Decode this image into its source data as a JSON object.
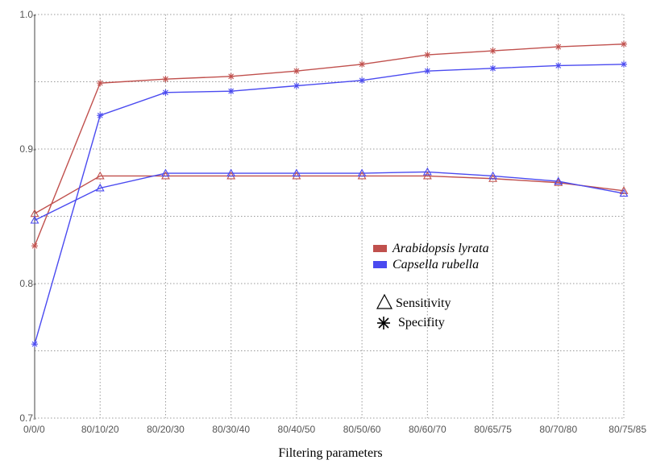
{
  "chart_data": {
    "type": "line",
    "title": "",
    "xlabel": "Filtering parameters",
    "ylabel": "",
    "ylim": [
      0.7,
      1.0
    ],
    "yticks": [
      0.7,
      0.8,
      0.9,
      1.0
    ],
    "ytick_labels": [
      "0.7-",
      "0.8-",
      "0.9-",
      "1.0-"
    ],
    "categories": [
      "0/0/0",
      "80/10/20",
      "80/20/30",
      "80/30/40",
      "80/40/50",
      "80/50/60",
      "80/60/70",
      "80/65/75",
      "80/70/80",
      "80/75/85"
    ],
    "grid": true,
    "legend_position": "center-right",
    "species": [
      {
        "name": "Arabidopsis lyrata",
        "color": "#c0504d"
      },
      {
        "name": "Capsella rubella",
        "color": "#4a4af0"
      }
    ],
    "metrics": [
      {
        "name": "Sensitivity",
        "marker": "triangle"
      },
      {
        "name": "Specifity",
        "marker": "asterisk"
      }
    ],
    "series": [
      {
        "species": "Arabidopsis lyrata",
        "metric": "Sensitivity",
        "color": "#c0504d",
        "marker": "triangle",
        "values": [
          0.852,
          0.88,
          0.88,
          0.88,
          0.88,
          0.88,
          0.88,
          0.878,
          0.875,
          0.869
        ]
      },
      {
        "species": "Arabidopsis lyrata",
        "metric": "Specifity",
        "color": "#c0504d",
        "marker": "asterisk",
        "values": [
          0.828,
          0.949,
          0.952,
          0.954,
          0.958,
          0.963,
          0.97,
          0.973,
          0.976,
          0.978
        ]
      },
      {
        "species": "Capsella rubella",
        "metric": "Sensitivity",
        "color": "#4a4af0",
        "marker": "triangle",
        "values": [
          0.847,
          0.871,
          0.882,
          0.882,
          0.882,
          0.882,
          0.883,
          0.88,
          0.876,
          0.867
        ]
      },
      {
        "species": "Capsella rubella",
        "metric": "Specifity",
        "color": "#4a4af0",
        "marker": "asterisk",
        "values": [
          0.755,
          0.925,
          0.942,
          0.943,
          0.947,
          0.951,
          0.958,
          0.96,
          0.962,
          0.963
        ]
      }
    ]
  }
}
